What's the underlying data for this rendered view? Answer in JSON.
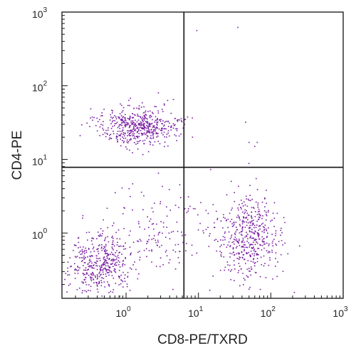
{
  "chart_data": {
    "type": "scatter",
    "xlabel": "CD8-PE/TXRD",
    "ylabel": "CD4-PE",
    "x_scale": "log",
    "y_scale": "log",
    "xlim": [
      0.13,
      1000
    ],
    "ylim": [
      0.13,
      1000
    ],
    "x_ticks": [
      {
        "base": "10",
        "exp": "0",
        "value": 1
      },
      {
        "base": "10",
        "exp": "1",
        "value": 10
      },
      {
        "base": "10",
        "exp": "2",
        "value": 100
      },
      {
        "base": "10",
        "exp": "3",
        "value": 1000
      }
    ],
    "y_ticks": [
      {
        "base": "10",
        "exp": "0",
        "value": 1
      },
      {
        "base": "10",
        "exp": "1",
        "value": 10
      },
      {
        "base": "10",
        "exp": "2",
        "value": 100
      },
      {
        "base": "10",
        "exp": "3",
        "value": 1000
      }
    ],
    "gate_lines": {
      "x": 6.3,
      "y": 7.8
    },
    "point_color": "#7a1fa2",
    "grid": false,
    "legend": "none",
    "populations": [
      {
        "x_center": 1.5,
        "y_center": 28,
        "x_spread_decades": 0.27,
        "y_spread_decades": 0.13,
        "count": 520
      },
      {
        "x_center": 0.42,
        "y_center": 0.38,
        "x_spread_decades": 0.22,
        "y_spread_decades": 0.2,
        "count": 430
      },
      {
        "x_center": 50,
        "y_center": 0.9,
        "x_spread_decades": 0.22,
        "y_spread_decades": 0.3,
        "count": 480
      },
      {
        "x_center": 3,
        "y_center": 1.0,
        "x_spread_decades": 0.4,
        "y_spread_decades": 0.3,
        "count": 160
      }
    ],
    "sparse_points": [
      {
        "x": 9.5,
        "y": 560
      },
      {
        "x": 35,
        "y": 620
      },
      {
        "x": 45,
        "y": 32
      },
      {
        "x": 50,
        "y": 17
      },
      {
        "x": 60,
        "y": 15
      },
      {
        "x": 65,
        "y": 17
      },
      {
        "x": 2.8,
        "y": 80
      },
      {
        "x": 4.5,
        "y": 65
      },
      {
        "x": 2.8,
        "y": 6.5
      },
      {
        "x": 1.1,
        "y": 4.0
      }
    ]
  }
}
